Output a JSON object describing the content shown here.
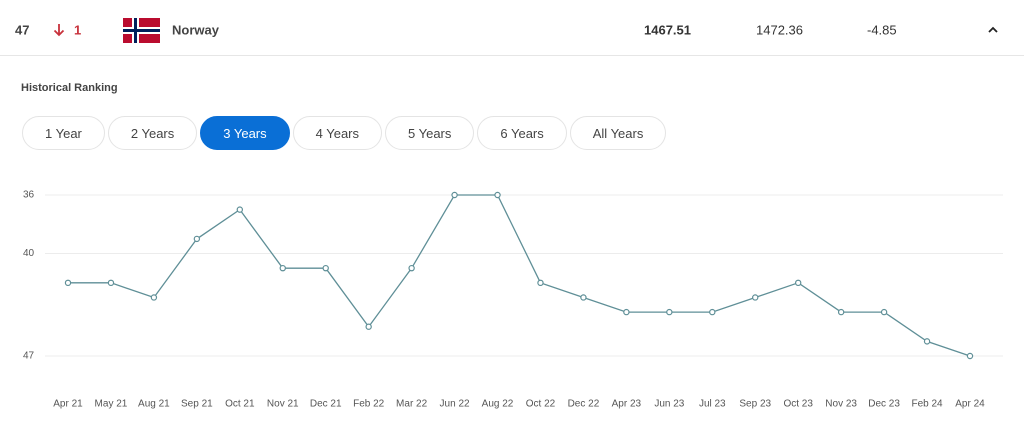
{
  "row": {
    "rank": 47,
    "change": 1,
    "country": "Norway",
    "points": 1467.51,
    "previous_points": 1472.36,
    "difference": -4.85
  },
  "section_title": "Historical Ranking",
  "range_buttons": {
    "labels": [
      "1 Year",
      "2 Years",
      "3 Years",
      "4 Years",
      "5 Years",
      "6 Years",
      "All Years"
    ],
    "active": 2
  },
  "chart_data": {
    "type": "line",
    "categories": [
      "Apr 21",
      "May 21",
      "Aug 21",
      "Sep 21",
      "Oct 21",
      "Nov 21",
      "Dec 21",
      "Feb 22",
      "Mar 22",
      "Jun 22",
      "Aug 22",
      "Oct 22",
      "Dec 22",
      "Apr 23",
      "Jun 23",
      "Jul 23",
      "Sep 23",
      "Oct 23",
      "Nov 23",
      "Dec 23",
      "Feb 24",
      "Apr 24"
    ],
    "values": [
      42,
      42,
      43,
      39,
      37,
      41,
      41,
      45,
      41,
      36,
      36,
      42,
      43,
      44,
      44,
      44,
      43,
      42,
      44,
      44,
      46,
      47
    ],
    "color": "#5f8f97",
    "ylim": [
      36,
      47
    ],
    "y_inverted": true,
    "yticks": [
      36,
      40,
      47
    ],
    "grid": true
  }
}
